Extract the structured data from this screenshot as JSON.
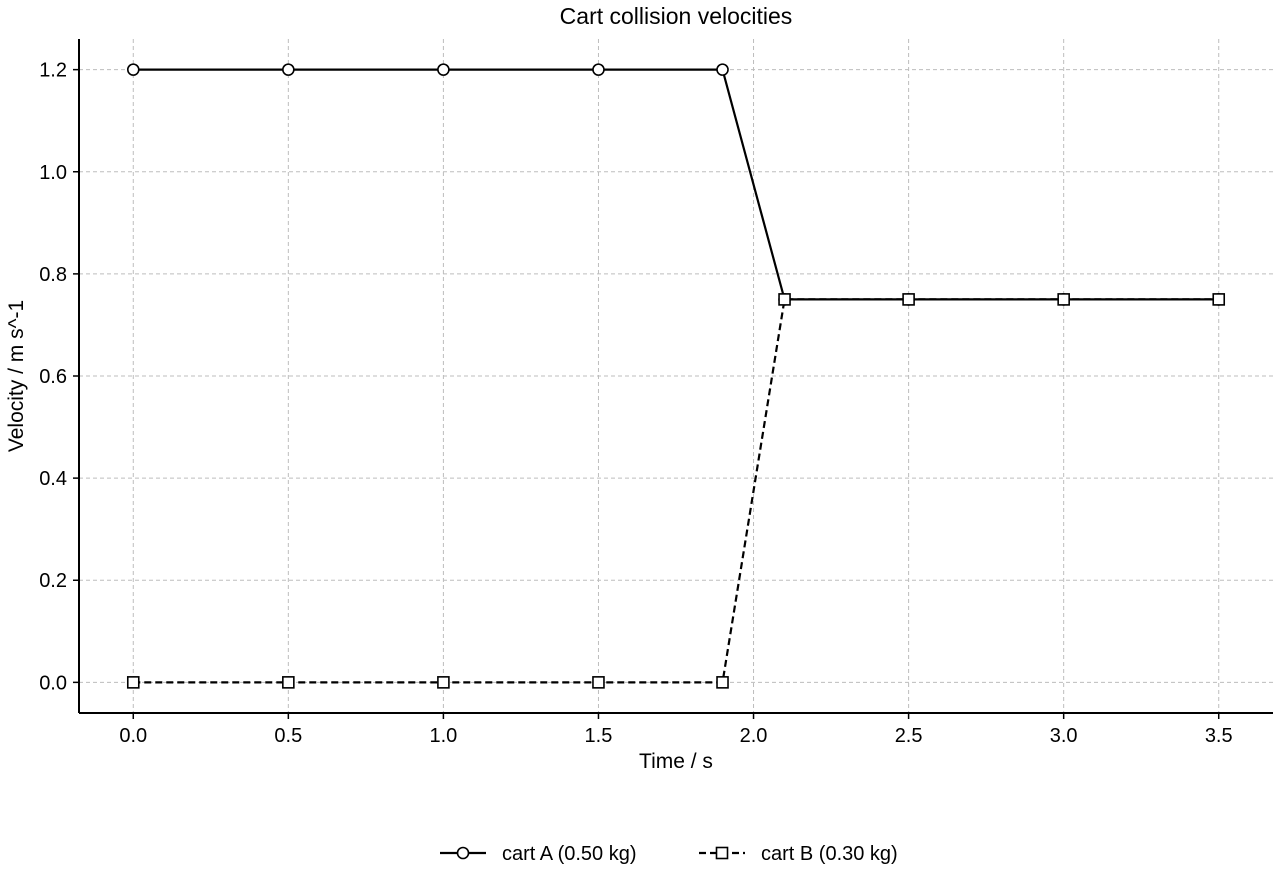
{
  "chart_data": {
    "type": "line",
    "title": "Cart collision velocities",
    "xlabel": "Time / s",
    "ylabel": "Velocity / m s^-1",
    "xlim": [
      -0.175,
      3.675
    ],
    "ylim": [
      -0.06,
      1.26
    ],
    "xticks": [
      0.0,
      0.5,
      1.0,
      1.5,
      2.0,
      2.5,
      3.0,
      3.5
    ],
    "yticks": [
      0.0,
      0.2,
      0.4,
      0.6,
      0.8,
      1.0,
      1.2
    ],
    "xtick_labels": [
      "0.0",
      "0.5",
      "1.0",
      "1.5",
      "2.0",
      "2.5",
      "3.0",
      "3.5"
    ],
    "ytick_labels": [
      "0.0",
      "0.2",
      "0.4",
      "0.6",
      "0.8",
      "1.0",
      "1.2"
    ],
    "grid": true,
    "legend_position": "bottom-center",
    "series": [
      {
        "name": "cart A (0.50 kg)",
        "marker": "circle",
        "line_style": "solid",
        "color": "#000000",
        "x": [
          0.0,
          0.5,
          1.0,
          1.5,
          1.9,
          2.1,
          2.5,
          3.0,
          3.5
        ],
        "y": [
          1.2,
          1.2,
          1.2,
          1.2,
          1.2,
          0.75,
          0.75,
          0.75,
          0.75
        ]
      },
      {
        "name": "cart B (0.30 kg)",
        "marker": "square",
        "line_style": "dashed",
        "color": "#000000",
        "x": [
          0.0,
          0.5,
          1.0,
          1.5,
          1.9,
          2.1,
          2.5,
          3.0,
          3.5
        ],
        "y": [
          0.0,
          0.0,
          0.0,
          0.0,
          0.0,
          0.75,
          0.75,
          0.75,
          0.75
        ]
      }
    ]
  }
}
